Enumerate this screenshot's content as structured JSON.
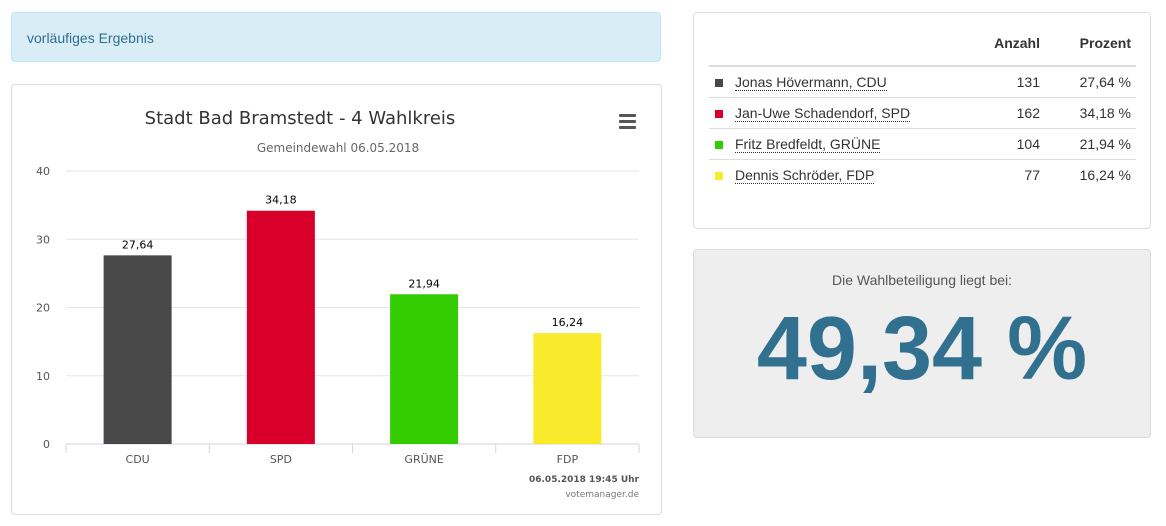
{
  "alert": {
    "text": "vorläufiges Ergebnis"
  },
  "chart_data": {
    "type": "bar",
    "title": "Stadt Bad Bramstedt - 4 Wahlkreis",
    "subtitle": "Gemeindewahl 06.05.2018",
    "categories": [
      "CDU",
      "SPD",
      "GRÜNE",
      "FDP"
    ],
    "values": [
      27.64,
      34.18,
      21.94,
      16.24
    ],
    "value_labels": [
      "27,64",
      "34,18",
      "21,94",
      "16,24"
    ],
    "colors": [
      "#484848",
      "#d8002a",
      "#33cc00",
      "#f9ea2b"
    ],
    "ylim": [
      0,
      40
    ],
    "yticks": [
      "0",
      "10",
      "20",
      "30",
      "40"
    ],
    "xlabel": "",
    "ylabel": "",
    "grid": true,
    "legend": "none",
    "credit_date": "06.05.2018 19:45 Uhr",
    "credit_source": "votemanager.de"
  },
  "menu_icon": "hamburger-icon",
  "results_table": {
    "headers": {
      "count": "Anzahl",
      "percent": "Prozent"
    },
    "rows": [
      {
        "name": "Jonas Hövermann, CDU",
        "count": "131",
        "percent": "27,64 %",
        "color": "#484848"
      },
      {
        "name": "Jan-Uwe Schadendorf, SPD",
        "count": "162",
        "percent": "34,18 %",
        "color": "#d8002a"
      },
      {
        "name": "Fritz Bredfeldt, GRÜNE",
        "count": "104",
        "percent": "21,94 %",
        "color": "#33cc00"
      },
      {
        "name": "Dennis Schröder, FDP",
        "count": "77",
        "percent": "16,24 %",
        "color": "#f9ea2b"
      }
    ]
  },
  "turnout": {
    "label": "Die Wahlbeteiligung liegt bei:",
    "value": "49,34 %"
  }
}
